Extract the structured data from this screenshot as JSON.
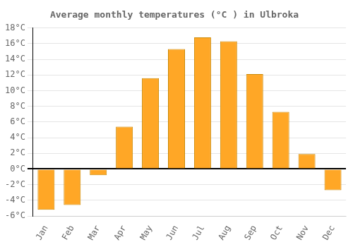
{
  "chart_data": {
    "type": "bar",
    "title": "Average monthly temperatures (°C ) in Ulbroka",
    "categories": [
      "Jan",
      "Feb",
      "Mar",
      "Apr",
      "May",
      "Jun",
      "Jul",
      "Aug",
      "Sep",
      "Oct",
      "Nov",
      "Dec"
    ],
    "values": [
      -5.2,
      -4.6,
      -0.8,
      5.4,
      11.6,
      15.3,
      16.8,
      16.3,
      12.1,
      7.3,
      1.9,
      -2.7
    ],
    "color": "#FFA726",
    "ylim": [
      -6,
      18
    ],
    "yticks": [
      {
        "value": -6,
        "label": "-6°C"
      },
      {
        "value": -4,
        "label": "-4°C"
      },
      {
        "value": -2,
        "label": "-2°C"
      },
      {
        "value": 0,
        "label": "0°C"
      },
      {
        "value": 2,
        "label": "2°C"
      },
      {
        "value": 4,
        "label": "4°C"
      },
      {
        "value": 6,
        "label": "6°C"
      },
      {
        "value": 8,
        "label": "8°C"
      },
      {
        "value": 10,
        "label": "10°C"
      },
      {
        "value": 12,
        "label": "12°C"
      },
      {
        "value": 14,
        "label": "14°C"
      },
      {
        "value": 16,
        "label": "16°C"
      },
      {
        "value": 18,
        "label": "18°C"
      }
    ],
    "grid": true
  }
}
